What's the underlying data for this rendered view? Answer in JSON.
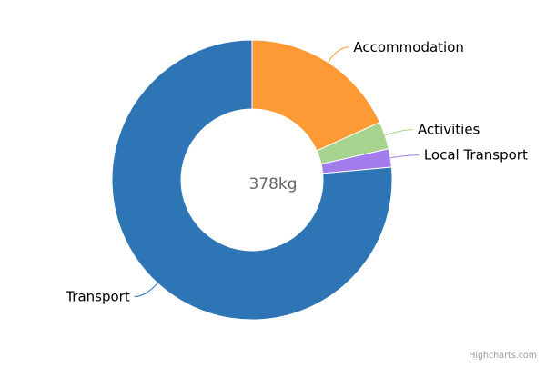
{
  "chart_data": {
    "type": "pie",
    "variant": "donut",
    "center_label": "378kg",
    "unit": "kg",
    "categories": [
      "Accommodation",
      "Activities",
      "Local Transport",
      "Transport"
    ],
    "values": [
      69,
      12,
      8,
      289
    ],
    "colors": [
      "#fd9a35",
      "#a6d38e",
      "#a27bec",
      "#2e75b5"
    ],
    "legend": "none",
    "data_labels": true
  },
  "credits": "Highcharts.com"
}
